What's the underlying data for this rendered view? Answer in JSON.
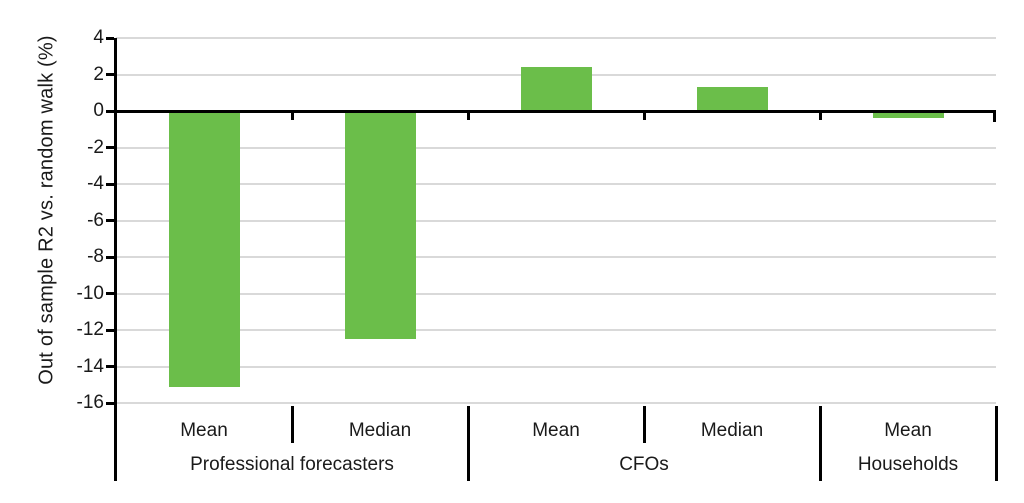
{
  "chart_data": {
    "type": "bar",
    "ylabel": "Out of sample R2 vs. random walk (%)",
    "xlabel": "",
    "ylim": [
      -16,
      4
    ],
    "yticks": [
      4,
      2,
      0,
      -2,
      -4,
      -6,
      -8,
      -10,
      -12,
      -14,
      -16
    ],
    "grid": true,
    "legend": null,
    "groups": [
      {
        "label": "Professional forecasters",
        "bars": [
          {
            "label": "Mean",
            "value": -15.1
          },
          {
            "label": "Median",
            "value": -12.5
          }
        ]
      },
      {
        "label": "CFOs",
        "bars": [
          {
            "label": "Mean",
            "value": 2.4
          },
          {
            "label": "Median",
            "value": 1.3
          }
        ]
      },
      {
        "label": "Households",
        "bars": [
          {
            "label": "Mean",
            "value": -0.4
          }
        ]
      }
    ],
    "colors": {
      "bar": "#6bbe4a",
      "gridline": "#d9d9d9",
      "axis": "#000000",
      "text": "#1a1a1a",
      "background": "#ffffff"
    }
  }
}
